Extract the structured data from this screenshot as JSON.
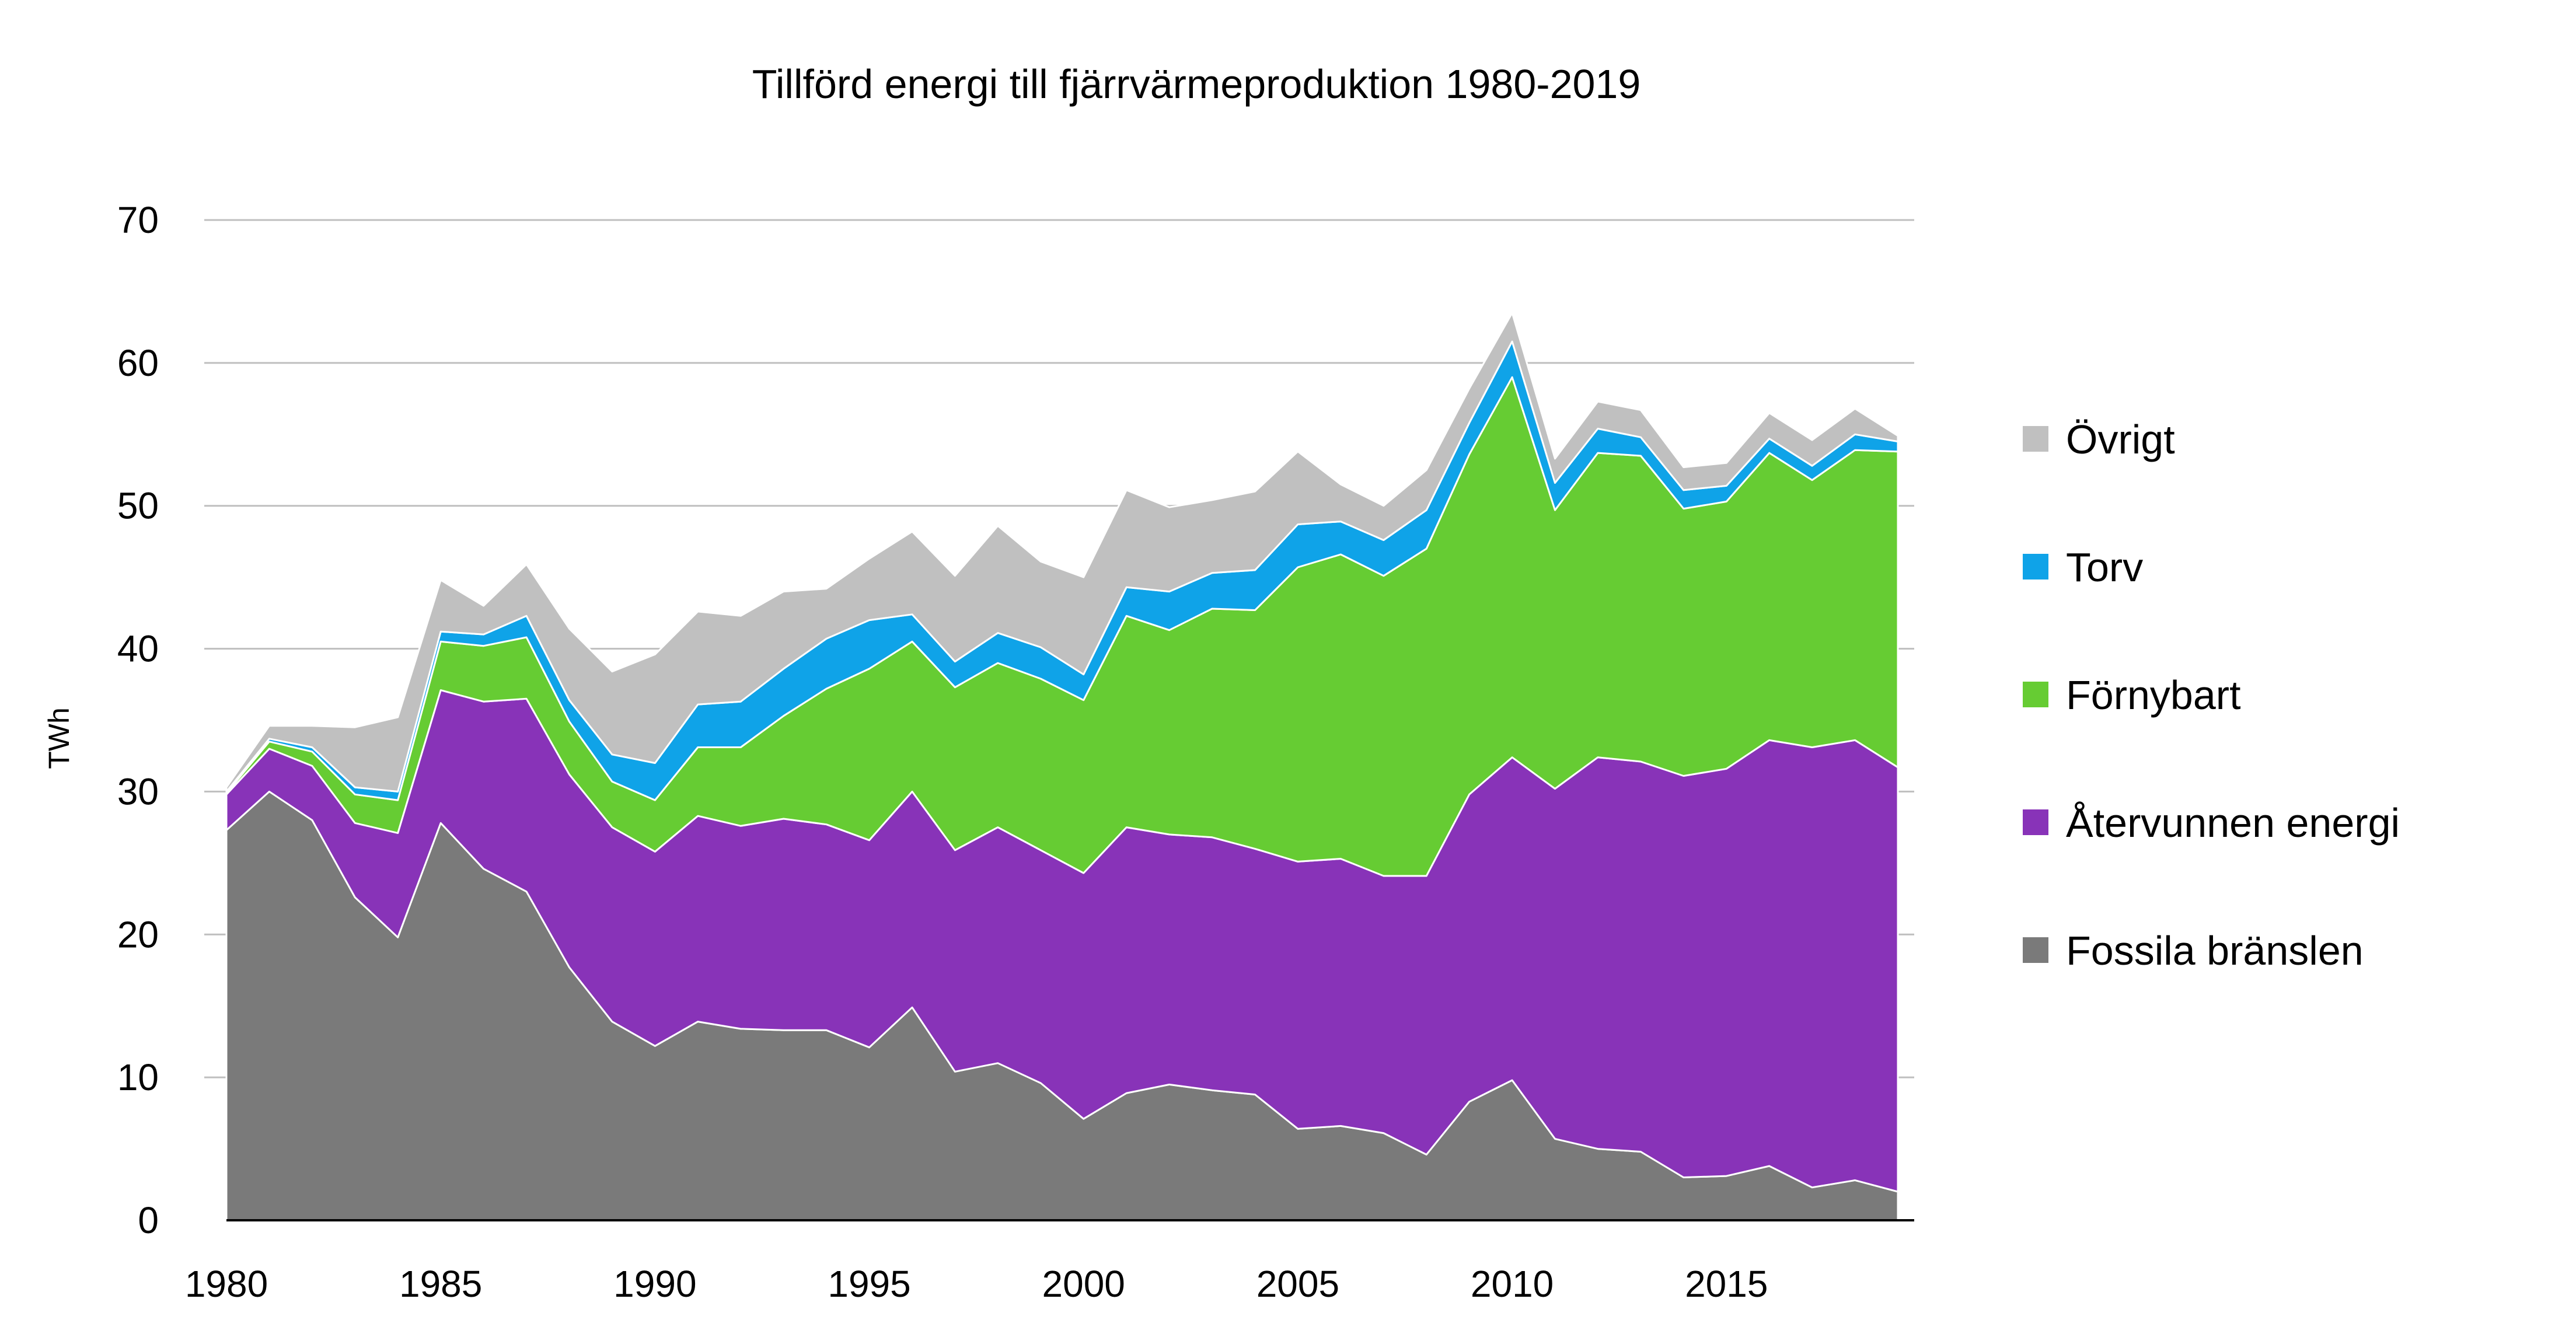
{
  "chart_data": {
    "type": "area",
    "stacked": true,
    "title": "Tillförd energi till fjärrvärmeproduktion 1980-2019",
    "xlabel": "",
    "ylabel": "TWh",
    "ylim": [
      0,
      70
    ],
    "yticks": [
      "0",
      "10",
      "20",
      "30",
      "40",
      "50",
      "60",
      "70"
    ],
    "xticks": [
      "1980",
      "1985",
      "1990",
      "1995",
      "2000",
      "2005",
      "2010",
      "2015"
    ],
    "grid": true,
    "legend_position": "right",
    "x": [
      1980,
      1981,
      1982,
      1983,
      1984,
      1985,
      1986,
      1987,
      1988,
      1989,
      1990,
      1991,
      1992,
      1993,
      1994,
      1995,
      1996,
      1997,
      1998,
      1999,
      2000,
      2001,
      2002,
      2003,
      2004,
      2005,
      2006,
      2007,
      2008,
      2009,
      2010,
      2011,
      2012,
      2013,
      2014,
      2015,
      2016,
      2017,
      2018,
      2019
    ],
    "series": [
      {
        "name": "Fossila bränslen",
        "color": "#7a7a7a",
        "values": [
          27.3,
          30,
          28,
          22.6,
          19.8,
          27.8,
          24.6,
          23,
          17.7,
          13.9,
          12.2,
          13.9,
          13.4,
          13.3,
          13.3,
          12.1,
          14.9,
          10.4,
          11,
          9.6,
          7.1,
          8.9,
          9.5,
          9.1,
          8.8,
          6.4,
          6.6,
          6.1,
          4.6,
          8.3,
          9.8,
          5.7,
          5,
          4.8,
          3,
          3.1,
          3.8,
          2.3,
          2.8,
          2
        ]
      },
      {
        "name": "Återvunnen energi",
        "color": "#8833b8",
        "values": [
          2.5,
          3,
          3.8,
          5.2,
          7.3,
          9.3,
          11.7,
          13.5,
          13.5,
          13.6,
          13.6,
          14.4,
          14.2,
          14.8,
          14.4,
          14.5,
          15.1,
          15.5,
          16.5,
          16.3,
          17.2,
          18.6,
          17.5,
          17.7,
          17.2,
          18.7,
          18.7,
          18,
          19.5,
          21.5,
          22.6,
          24.5,
          27.4,
          27.3,
          28.1,
          28.5,
          29.8,
          30.8,
          30.8,
          29.7
        ]
      },
      {
        "name": "Förnybart",
        "color": "#66cc33",
        "values": [
          0.1,
          0.5,
          1,
          2,
          2.3,
          3.4,
          3.9,
          4.3,
          3.7,
          3.2,
          3.6,
          4.8,
          5.5,
          7.2,
          9.5,
          12,
          10.5,
          11.4,
          11.5,
          12,
          12.1,
          14.8,
          14.3,
          16,
          16.7,
          20.6,
          21.3,
          21,
          22.9,
          23.8,
          26.6,
          19.5,
          21.3,
          21.4,
          18.7,
          18.7,
          20.1,
          18.7,
          20.3,
          22.1
        ]
      },
      {
        "name": "Torv",
        "color": "#0fa3e8",
        "values": [
          0.1,
          0.2,
          0.3,
          0.5,
          0.6,
          0.7,
          0.8,
          1.5,
          1.5,
          1.9,
          2.6,
          3,
          3.2,
          3.3,
          3.5,
          3.4,
          1.9,
          1.8,
          2.1,
          2.2,
          1.8,
          2,
          2.7,
          2.5,
          2.8,
          3,
          2.3,
          2.5,
          2.7,
          2.2,
          2.5,
          1.9,
          1.7,
          1.3,
          1.3,
          1.1,
          1,
          1,
          1.1,
          0.7
        ]
      },
      {
        "name": "Övrigt",
        "color": "#c0c0c0",
        "values": [
          0.3,
          0.9,
          1.5,
          4.2,
          5.2,
          3.6,
          2,
          3.6,
          5,
          5.8,
          7.6,
          6.5,
          6,
          5.4,
          3.5,
          4.3,
          5.8,
          6,
          7.5,
          6,
          6.8,
          6.8,
          5.9,
          5.1,
          5.5,
          5.1,
          2.6,
          2.4,
          2.8,
          2.4,
          2,
          1.7,
          1.9,
          1.9,
          1.6,
          1.6,
          1.8,
          1.8,
          1.8,
          0.4
        ]
      }
    ],
    "legend_order": [
      "Övrigt",
      "Torv",
      "Förnybart",
      "Återvunnen energi",
      "Fossila bränslen"
    ]
  }
}
